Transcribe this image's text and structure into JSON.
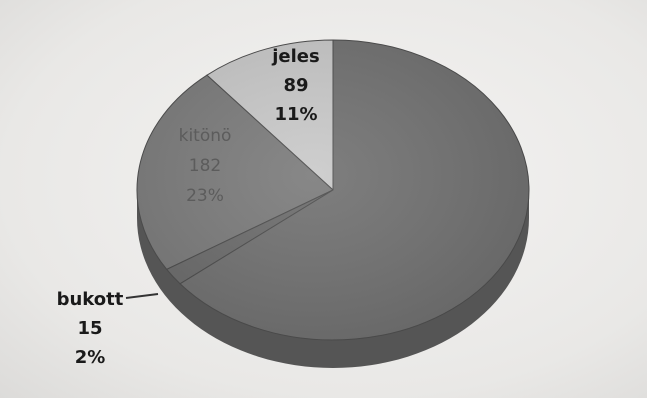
{
  "chart_data": {
    "type": "pie",
    "title": "",
    "style": "3d-tilted",
    "slices": [
      {
        "label": "jeles",
        "value": 89,
        "percent": "11%",
        "color": "#c9c9c9"
      },
      {
        "label": "kitűnő",
        "value": 182,
        "percent": "23%",
        "color": "#7a7a7a"
      },
      {
        "label": "bukott",
        "value": 15,
        "percent": "2%",
        "color": "#6b6b6b"
      },
      {
        "label": "",
        "value": 514,
        "percent": "",
        "color": "#707070"
      }
    ],
    "label_texts": {
      "jeles": {
        "name": "jeles",
        "count": "89",
        "pct": "11%"
      },
      "kitono": {
        "name": "kitönö",
        "count": "182",
        "pct": "23%"
      },
      "bukott": {
        "name": "bukott",
        "count": "15",
        "pct": "2%"
      }
    }
  }
}
